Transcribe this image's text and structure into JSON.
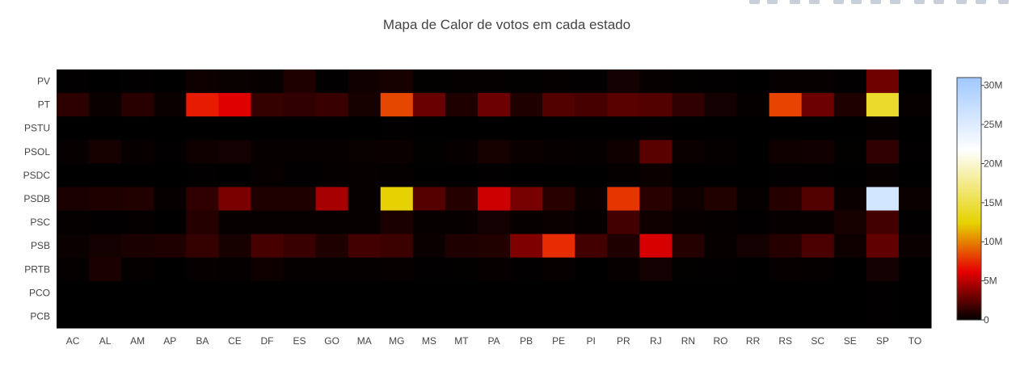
{
  "chart_data": {
    "type": "heatmap",
    "title": "Mapa de Calor de votos em cada estado",
    "x": [
      "AC",
      "AL",
      "AM",
      "AP",
      "BA",
      "CE",
      "DF",
      "ES",
      "GO",
      "MA",
      "MG",
      "MS",
      "MT",
      "PA",
      "PB",
      "PE",
      "PI",
      "PR",
      "RJ",
      "RN",
      "RO",
      "RR",
      "RS",
      "SC",
      "SE",
      "SP",
      "TO"
    ],
    "y": [
      "PV",
      "PT",
      "PSTU",
      "PSOL",
      "PSDC",
      "PSDB",
      "PSC",
      "PSB",
      "PRTB",
      "PCO",
      "PCB"
    ],
    "z": [
      [
        50000,
        30000,
        60000,
        20000,
        400000,
        250000,
        150000,
        800000,
        50000,
        450000,
        600000,
        90000,
        100000,
        100000,
        90000,
        100000,
        50000,
        500000,
        200000,
        80000,
        50000,
        20000,
        200000,
        150000,
        50000,
        3000000,
        20000
      ],
      [
        1200000,
        300000,
        1100000,
        300000,
        7000000,
        6000000,
        1400000,
        1300000,
        1500000,
        600000,
        8300000,
        2800000,
        800000,
        2900000,
        800000,
        2200000,
        1900000,
        2400000,
        2200000,
        1300000,
        500000,
        100000,
        8200000,
        2900000,
        800000,
        14000000,
        200000
      ],
      [
        10000,
        5000,
        10000,
        3000,
        30000,
        30000,
        20000,
        20000,
        20000,
        20000,
        60000,
        10000,
        10000,
        20000,
        10000,
        20000,
        10000,
        30000,
        50000,
        10000,
        10000,
        3000,
        40000,
        30000,
        10000,
        200000,
        5000
      ],
      [
        150000,
        600000,
        200000,
        50000,
        400000,
        500000,
        150000,
        150000,
        150000,
        250000,
        300000,
        80000,
        200000,
        600000,
        300000,
        200000,
        100000,
        400000,
        2400000,
        300000,
        100000,
        30000,
        400000,
        450000,
        80000,
        1300000,
        50000
      ],
      [
        20000,
        10000,
        20000,
        10000,
        50000,
        40000,
        150000,
        50000,
        100000,
        150000,
        100000,
        40000,
        40000,
        60000,
        40000,
        30000,
        20000,
        100000,
        300000,
        30000,
        20000,
        10000,
        50000,
        50000,
        20000,
        200000,
        10000
      ],
      [
        700000,
        800000,
        900000,
        200000,
        1300000,
        3300000,
        800000,
        800000,
        4500000,
        200000,
        12500000,
        2300000,
        1000000,
        5500000,
        3200000,
        1100000,
        300000,
        7800000,
        1100000,
        400000,
        900000,
        150000,
        1000000,
        2200000,
        300000,
        26000000,
        300000
      ],
      [
        100000,
        50000,
        100000,
        30000,
        1000000,
        150000,
        150000,
        150000,
        200000,
        200000,
        700000,
        150000,
        150000,
        500000,
        200000,
        300000,
        100000,
        1800000,
        400000,
        150000,
        100000,
        50000,
        200000,
        200000,
        600000,
        1800000,
        50000
      ],
      [
        300000,
        500000,
        700000,
        800000,
        1400000,
        600000,
        1900000,
        1500000,
        800000,
        1800000,
        1600000,
        300000,
        800000,
        900000,
        3400000,
        7500000,
        1800000,
        800000,
        5800000,
        1000000,
        200000,
        500000,
        1000000,
        2000000,
        400000,
        2600000,
        300000
      ],
      [
        100000,
        700000,
        100000,
        20000,
        150000,
        100000,
        400000,
        100000,
        100000,
        100000,
        200000,
        50000,
        80000,
        150000,
        50000,
        150000,
        30000,
        150000,
        500000,
        80000,
        50000,
        20000,
        150000,
        100000,
        30000,
        500000,
        20000
      ],
      [
        5000,
        5000,
        5000,
        2000,
        20000,
        10000,
        10000,
        10000,
        10000,
        10000,
        20000,
        5000,
        5000,
        10000,
        5000,
        10000,
        5000,
        20000,
        30000,
        5000,
        5000,
        2000,
        20000,
        10000,
        5000,
        50000,
        2000
      ],
      [
        5000,
        5000,
        5000,
        2000,
        20000,
        10000,
        10000,
        10000,
        10000,
        10000,
        20000,
        5000,
        5000,
        10000,
        5000,
        10000,
        5000,
        20000,
        30000,
        5000,
        5000,
        2000,
        20000,
        10000,
        5000,
        50000,
        2000
      ]
    ],
    "colorscale": {
      "name": "Blackbody",
      "stops": [
        [
          0,
          "#000000"
        ],
        [
          0.2,
          "#e60000"
        ],
        [
          0.4,
          "#e6d200"
        ],
        [
          0.7,
          "#ffffff"
        ],
        [
          1,
          "#a0c8ff"
        ]
      ]
    },
    "zmin": 0,
    "zmax": 31000000,
    "colorbar_ticks": [
      {
        "value": 0,
        "label": "0"
      },
      {
        "value": 5000000,
        "label": "5M"
      },
      {
        "value": 10000000,
        "label": "10M"
      },
      {
        "value": 15000000,
        "label": "15M"
      },
      {
        "value": 20000000,
        "label": "20M"
      },
      {
        "value": 25000000,
        "label": "25M"
      },
      {
        "value": 30000000,
        "label": "30M"
      }
    ]
  }
}
